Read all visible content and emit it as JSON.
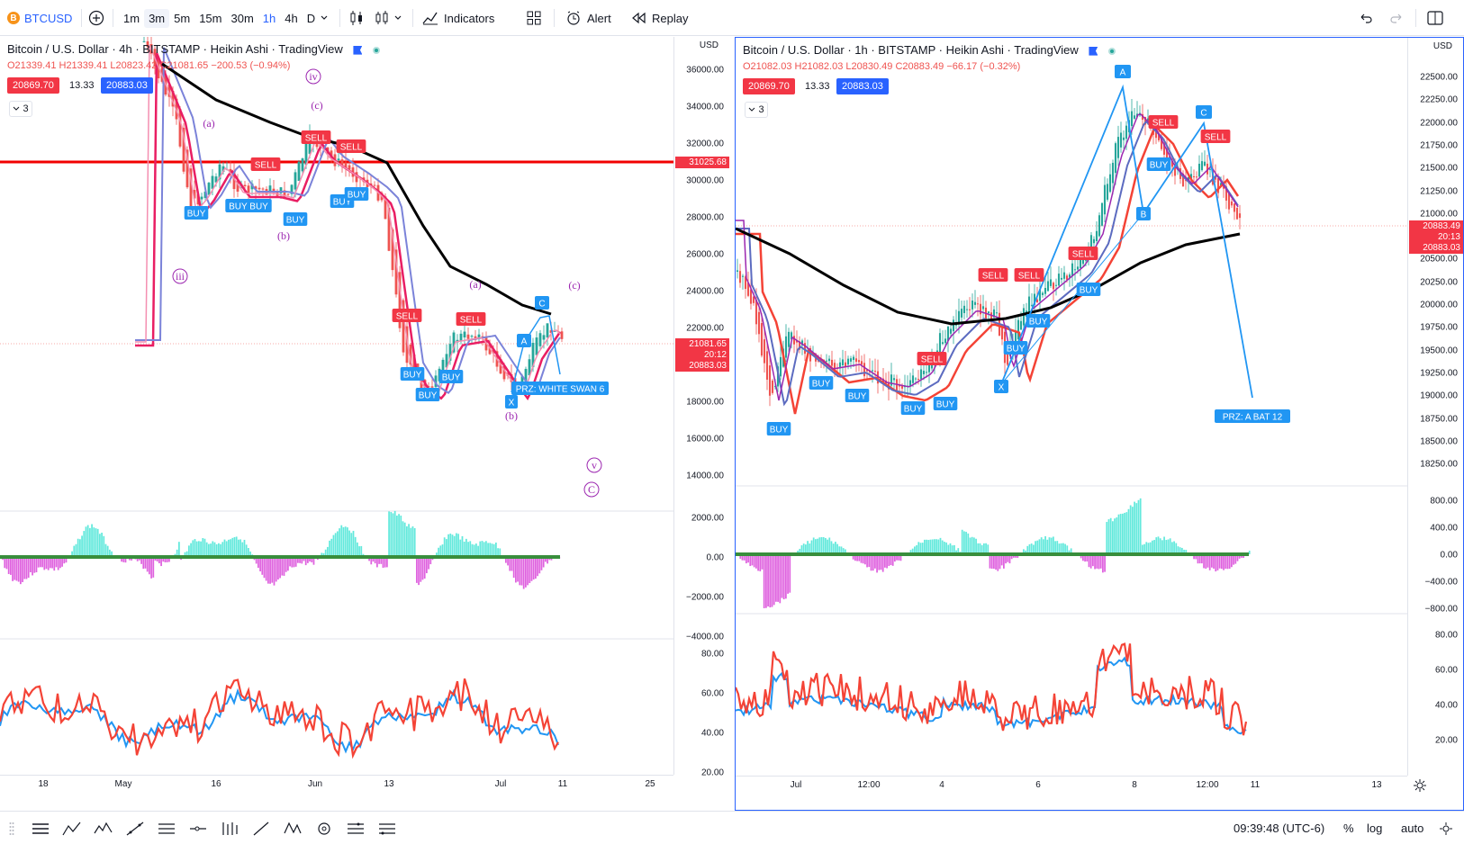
{
  "toolbar": {
    "symbol": "BTCUSD",
    "symbol_icon": "B",
    "intervals": [
      "1m",
      "3m",
      "5m",
      "15m",
      "30m",
      "1h",
      "4h",
      "D"
    ],
    "active_interval": "1h",
    "indicators_label": "Indicators",
    "alert_label": "Alert",
    "replay_label": "Replay",
    "colors": {
      "accent": "#2962ff"
    }
  },
  "left_chart": {
    "title": "Bitcoin / U.S. Dollar · 4h · BITSTAMP · Heikin Ashi · TradingView",
    "ohlc": {
      "o": "O21339.41",
      "h": "H21339.41",
      "l": "L20823.42",
      "c": "C21081.65",
      "chg": "−200.53 (−0.94%)"
    },
    "bid": "20869.70",
    "spread": "13.33",
    "ask": "20883.03",
    "indicators_count": "3",
    "currency": "USD",
    "price_ticks": [
      "36000.00",
      "34000.00",
      "32000.00",
      "30000.00",
      "28000.00",
      "26000.00",
      "24000.00",
      "22000.00",
      "20000.00",
      "18000.00",
      "16000.00",
      "14000.00"
    ],
    "hline_tag": "31025.68",
    "last_tag": [
      "21081.65",
      "20:12",
      "20883.03"
    ],
    "macd_ticks": [
      "2000.00",
      "0.00",
      "−2000.00",
      "−4000.00"
    ],
    "rsi_ticks": [
      "80.00",
      "60.00",
      "40.00",
      "20.00"
    ],
    "time_ticks": [
      "18",
      "May",
      "16",
      "Jun",
      "13",
      "Jul",
      "11",
      "25"
    ],
    "waves": [
      "(a)",
      "iv",
      "(c)",
      "(b)",
      "iii",
      "(a)",
      "(c)",
      "(b)",
      "v",
      "C"
    ],
    "pattern_points": [
      "A",
      "C",
      "X"
    ],
    "przs": [
      "PRZ: WHITE SWAN 6"
    ],
    "signals_buy": [
      "BUY",
      "BUY BUY",
      "BUY",
      "BUY",
      "BUY",
      "BUY",
      "BUY",
      "BUY"
    ],
    "signals_sell": [
      "SELL",
      "SELL",
      "SELL",
      "SELL",
      "SELL"
    ]
  },
  "right_chart": {
    "title": "Bitcoin / U.S. Dollar · 1h · BITSTAMP · Heikin Ashi · TradingView",
    "ohlc": {
      "o": "O21082.03",
      "h": "H21082.03",
      "l": "L20830.49",
      "c": "C20883.49",
      "chg": "−66.17 (−0.32%)"
    },
    "bid": "20869.70",
    "spread": "13.33",
    "ask": "20883.03",
    "indicators_count": "3",
    "currency": "USD",
    "price_ticks": [
      "22500.00",
      "22250.00",
      "22000.00",
      "21750.00",
      "21500.00",
      "21250.00",
      "21000.00",
      "20750.00",
      "20500.00",
      "20250.00",
      "20000.00",
      "19750.00",
      "19500.00",
      "19250.00",
      "19000.00",
      "18750.00",
      "18500.00",
      "18250.00"
    ],
    "last_tag": [
      "20883.49",
      "20:13",
      "20883.03"
    ],
    "macd_ticks": [
      "800.00",
      "400.00",
      "0.00",
      "−400.00",
      "−800.00"
    ],
    "rsi_ticks": [
      "80.00",
      "60.00",
      "40.00",
      "20.00"
    ],
    "time_ticks": [
      "Jul",
      "12:00",
      "4",
      "6",
      "8",
      "12:00",
      "11",
      "13"
    ],
    "pattern_points": [
      "A",
      "C",
      "B",
      "X"
    ],
    "przs": [
      "PRZ: A BAT 12"
    ],
    "signals_buy": [
      "BUY",
      "BUY",
      "BUY",
      "BUY",
      "BUY",
      "BUY",
      "BUY",
      "BUY",
      "BUY"
    ],
    "signals_sell": [
      "SELL",
      "SELL",
      "SELL",
      "SELL",
      "SELL",
      "SELL"
    ]
  },
  "bottombar": {
    "clock": "09:39:48 (UTC-6)",
    "percent": "%",
    "log": "log",
    "auto": "auto"
  }
}
